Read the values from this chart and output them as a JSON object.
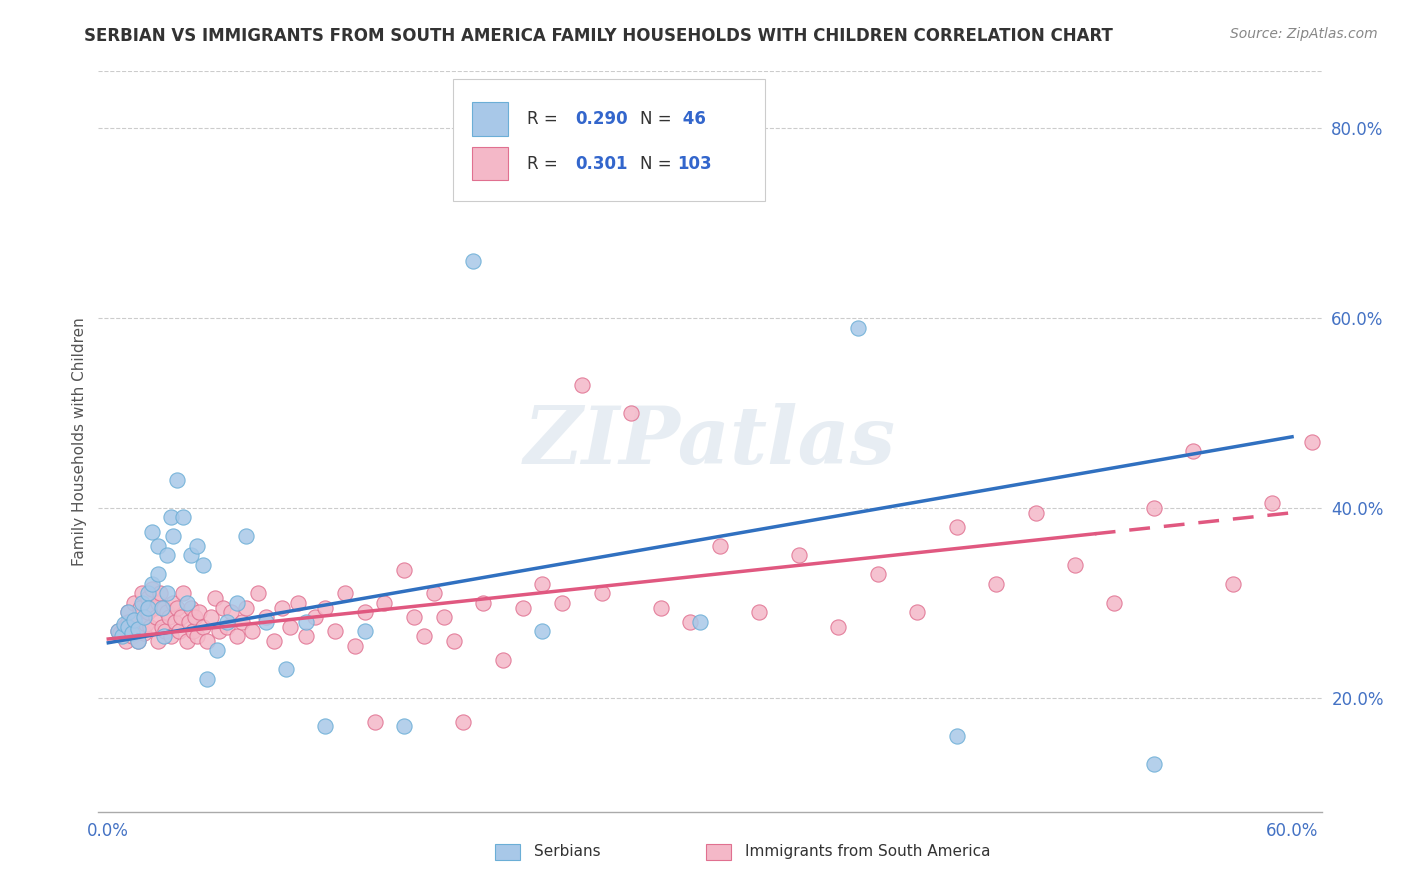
{
  "title": "SERBIAN VS IMMIGRANTS FROM SOUTH AMERICA FAMILY HOUSEHOLDS WITH CHILDREN CORRELATION CHART",
  "source": "Source: ZipAtlas.com",
  "ylabel": "Family Households with Children",
  "watermark": "ZIPatlas",
  "xlim": [
    -0.005,
    0.615
  ],
  "ylim": [
    0.08,
    0.86
  ],
  "xticks": [
    0.0,
    0.1,
    0.2,
    0.3,
    0.4,
    0.5,
    0.6
  ],
  "xticklabels": [
    "0.0%",
    "",
    "",
    "",
    "",
    "",
    "60.0%"
  ],
  "yticks": [
    0.2,
    0.4,
    0.6,
    0.8
  ],
  "yticklabels": [
    "20.0%",
    "40.0%",
    "60.0%",
    "80.0%"
  ],
  "yticks_grid": [
    0.2,
    0.4,
    0.6,
    0.8
  ],
  "serbian_color": "#a8c8e8",
  "serbian_edge_color": "#6baed6",
  "south_america_color": "#f4b8c8",
  "south_america_edge_color": "#e07090",
  "trend_serbian_color": "#3070c0",
  "trend_sa_color": "#e05880",
  "legend_R_serbian": "0.290",
  "legend_N_serbian": "46",
  "legend_R_sa": "0.301",
  "legend_N_sa": "103",
  "serbian_label": "Serbians",
  "sa_label": "Immigrants from South America",
  "background_color": "#ffffff",
  "grid_color": "#cccccc",
  "title_color": "#333333",
  "ytick_color": "#4472c4",
  "xtick_color": "#4472c4",
  "axis_label_color": "#555555",
  "serbian_x": [
    0.005,
    0.007,
    0.008,
    0.01,
    0.01,
    0.012,
    0.013,
    0.015,
    0.015,
    0.017,
    0.018,
    0.02,
    0.02,
    0.022,
    0.022,
    0.025,
    0.025,
    0.027,
    0.028,
    0.03,
    0.03,
    0.032,
    0.033,
    0.035,
    0.038,
    0.04,
    0.042,
    0.045,
    0.048,
    0.05,
    0.055,
    0.06,
    0.065,
    0.07,
    0.08,
    0.09,
    0.1,
    0.11,
    0.13,
    0.15,
    0.185,
    0.22,
    0.3,
    0.38,
    0.43,
    0.53
  ],
  "serbian_y": [
    0.27,
    0.265,
    0.278,
    0.275,
    0.29,
    0.268,
    0.282,
    0.272,
    0.26,
    0.3,
    0.285,
    0.31,
    0.295,
    0.375,
    0.32,
    0.33,
    0.36,
    0.295,
    0.265,
    0.31,
    0.35,
    0.39,
    0.37,
    0.43,
    0.39,
    0.3,
    0.35,
    0.36,
    0.34,
    0.22,
    0.25,
    0.28,
    0.3,
    0.37,
    0.28,
    0.23,
    0.28,
    0.17,
    0.27,
    0.17,
    0.66,
    0.27,
    0.28,
    0.59,
    0.16,
    0.13
  ],
  "sa_x": [
    0.005,
    0.006,
    0.008,
    0.009,
    0.01,
    0.01,
    0.012,
    0.013,
    0.014,
    0.015,
    0.015,
    0.016,
    0.017,
    0.018,
    0.019,
    0.02,
    0.02,
    0.021,
    0.022,
    0.023,
    0.024,
    0.025,
    0.025,
    0.026,
    0.027,
    0.028,
    0.029,
    0.03,
    0.031,
    0.032,
    0.033,
    0.034,
    0.035,
    0.036,
    0.037,
    0.038,
    0.04,
    0.041,
    0.042,
    0.043,
    0.044,
    0.045,
    0.046,
    0.048,
    0.05,
    0.052,
    0.054,
    0.056,
    0.058,
    0.06,
    0.062,
    0.065,
    0.068,
    0.07,
    0.073,
    0.076,
    0.08,
    0.084,
    0.088,
    0.092,
    0.096,
    0.1,
    0.105,
    0.11,
    0.115,
    0.12,
    0.125,
    0.13,
    0.135,
    0.14,
    0.15,
    0.155,
    0.16,
    0.165,
    0.17,
    0.175,
    0.18,
    0.19,
    0.2,
    0.21,
    0.22,
    0.23,
    0.24,
    0.25,
    0.265,
    0.28,
    0.295,
    0.31,
    0.33,
    0.35,
    0.37,
    0.39,
    0.41,
    0.43,
    0.45,
    0.47,
    0.49,
    0.51,
    0.53,
    0.55,
    0.57,
    0.59,
    0.61
  ],
  "sa_y": [
    0.27,
    0.268,
    0.275,
    0.26,
    0.29,
    0.28,
    0.265,
    0.3,
    0.272,
    0.285,
    0.26,
    0.295,
    0.31,
    0.268,
    0.278,
    0.305,
    0.29,
    0.275,
    0.315,
    0.295,
    0.285,
    0.3,
    0.26,
    0.31,
    0.275,
    0.295,
    0.27,
    0.29,
    0.285,
    0.265,
    0.3,
    0.28,
    0.295,
    0.27,
    0.285,
    0.31,
    0.26,
    0.28,
    0.295,
    0.27,
    0.285,
    0.265,
    0.29,
    0.275,
    0.26,
    0.285,
    0.305,
    0.27,
    0.295,
    0.275,
    0.29,
    0.265,
    0.28,
    0.295,
    0.27,
    0.31,
    0.285,
    0.26,
    0.295,
    0.275,
    0.3,
    0.265,
    0.285,
    0.295,
    0.27,
    0.31,
    0.255,
    0.29,
    0.175,
    0.3,
    0.335,
    0.285,
    0.265,
    0.31,
    0.285,
    0.26,
    0.175,
    0.3,
    0.24,
    0.295,
    0.32,
    0.3,
    0.53,
    0.31,
    0.5,
    0.295,
    0.28,
    0.36,
    0.29,
    0.35,
    0.275,
    0.33,
    0.29,
    0.38,
    0.32,
    0.395,
    0.34,
    0.3,
    0.4,
    0.46,
    0.32,
    0.405,
    0.47
  ],
  "trend_serb_x0": 0.0,
  "trend_serb_y0": 0.258,
  "trend_serb_x1": 0.6,
  "trend_serb_y1": 0.475,
  "trend_sa_x0": 0.0,
  "trend_sa_y0": 0.262,
  "trend_sa_x1": 0.6,
  "trend_sa_y1": 0.395,
  "trend_sa_dashed_x": 0.5
}
